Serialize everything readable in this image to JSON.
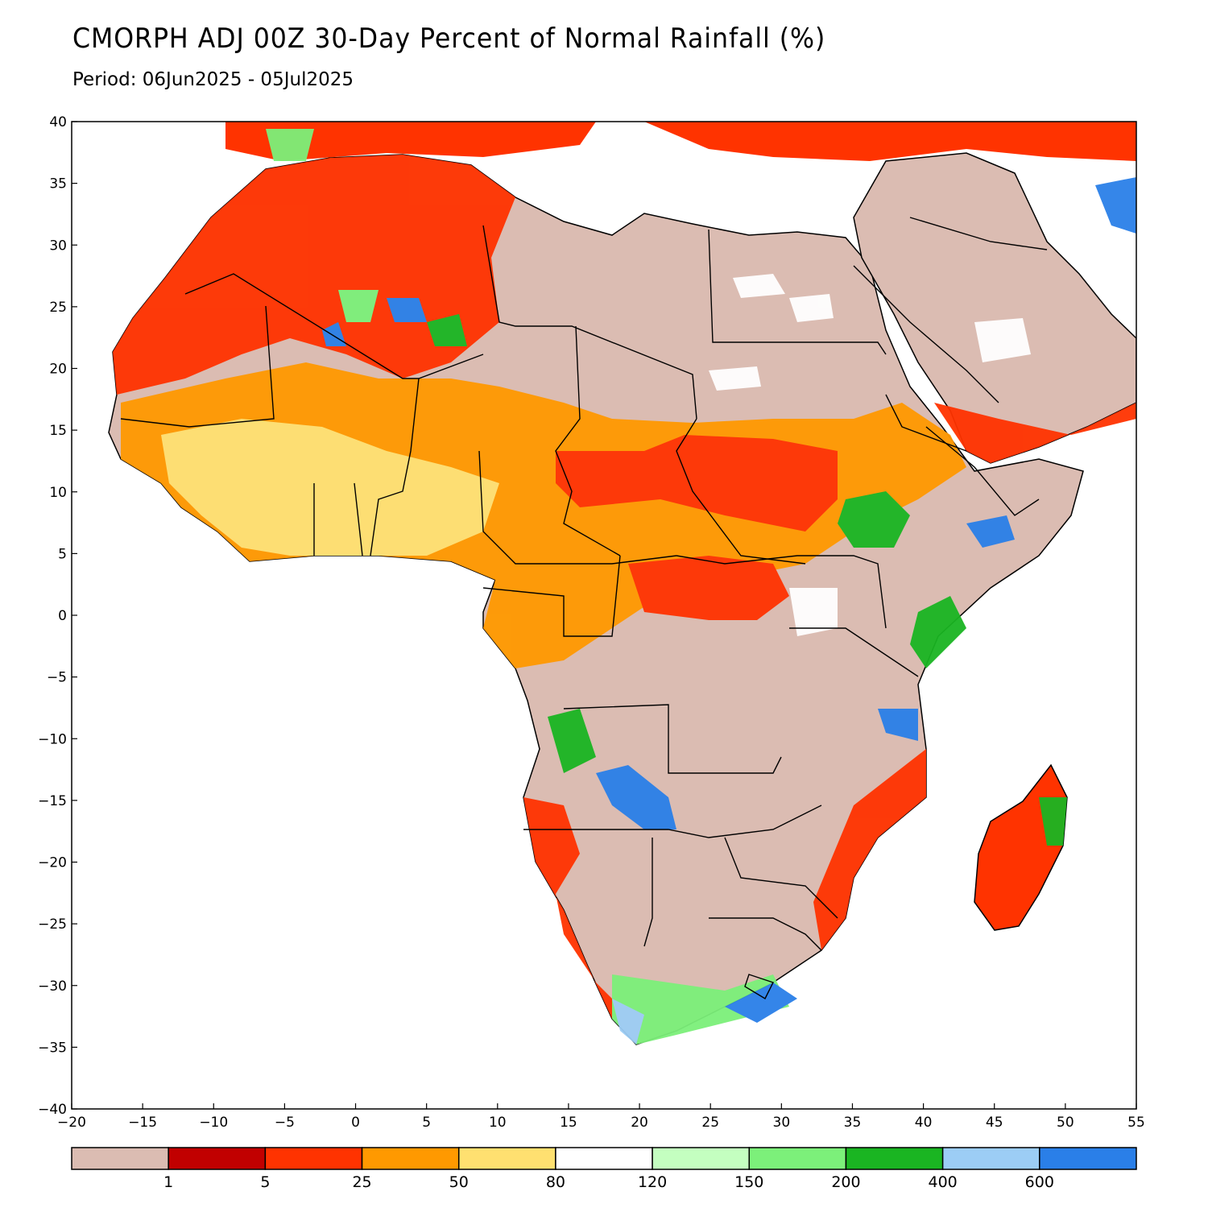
{
  "header": {
    "title": "CMORPH ADJ 00Z 30-Day Percent of Normal Rainfall (%)",
    "period": "Period: 06Jun2025 - 05Jul2025"
  },
  "map": {
    "lon_range": [
      -20,
      55
    ],
    "lat_range": [
      -40,
      40
    ],
    "x_ticks": [
      "−20",
      "−15",
      "−10",
      "−5",
      "0",
      "5",
      "10",
      "15",
      "20",
      "25",
      "30",
      "35",
      "40",
      "45",
      "50",
      "55"
    ],
    "y_ticks": [
      "40",
      "35",
      "30",
      "25",
      "20",
      "15",
      "10",
      "5",
      "0",
      "−5",
      "−10",
      "−15",
      "−20",
      "−25",
      "−30",
      "−35",
      "−40"
    ],
    "background": "#ffffff"
  },
  "legend": {
    "colors": [
      "#dbbcb2",
      "#c10000",
      "#ff3300",
      "#ff9900",
      "#ffe070",
      "#ffffff",
      "#c4ffc0",
      "#7cf07a",
      "#1ab522",
      "#9ccdf5",
      "#2a7fe8"
    ],
    "labels": [
      "1",
      "5",
      "25",
      "50",
      "80",
      "120",
      "150",
      "200",
      "400",
      "600"
    ]
  }
}
